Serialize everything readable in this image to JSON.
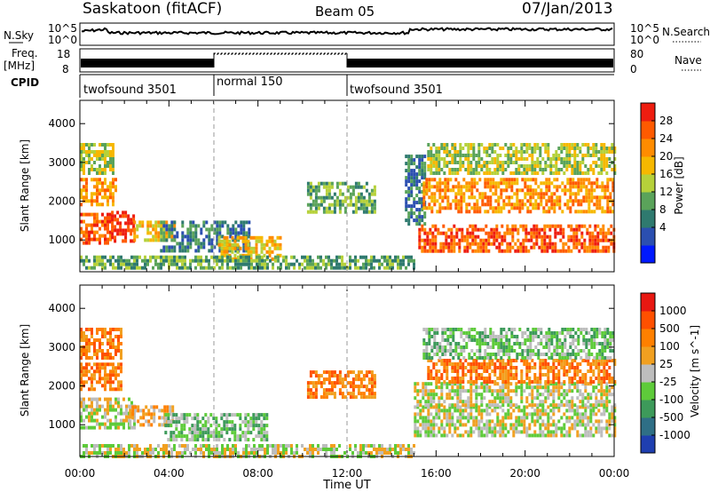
{
  "header": {
    "station": "Saskatoon (fitACF)",
    "beam": "Beam 05",
    "date": "07/Jan/2013"
  },
  "noise_panel": {
    "left_label": "N.Sky",
    "left_ticks": [
      "10^5",
      "10^0"
    ],
    "right_label": "N.Search",
    "right_ticks": [
      "10^5",
      "10^0"
    ]
  },
  "freq_panel": {
    "left_label_1": "Freq.",
    "left_label_2": "[MHz]",
    "left_ticks": [
      "18",
      "8"
    ],
    "right_label": "Nave",
    "right_ticks": [
      "80",
      "0"
    ]
  },
  "cpid": {
    "label": "CPID",
    "segments": [
      {
        "name": "twofsound 3501",
        "start_h": 0,
        "end_h": 6
      },
      {
        "name": "normal 150",
        "start_h": 6,
        "end_h": 12
      },
      {
        "name": "twofsound 3501",
        "start_h": 12,
        "end_h": 24
      }
    ]
  },
  "chart_data": [
    {
      "type": "heatmap",
      "panel": "power",
      "xlabel": "",
      "ylabel": "Slant Range [km]",
      "xlim": [
        0,
        24
      ],
      "ylim": [
        180,
        4600
      ],
      "y_ticks": [
        1000,
        2000,
        3000,
        4000
      ],
      "x_ticks": [
        "00:00",
        "04:00",
        "08:00",
        "12:00",
        "16:00",
        "20:00",
        "00:00"
      ],
      "colorbar": {
        "label": "Power [dB]",
        "ticks": [
          "28",
          "24",
          "20",
          "16",
          "12",
          "8",
          "4"
        ],
        "colors": [
          "#0019ff",
          "#2b4fb0",
          "#2f7a6f",
          "#5aa35a",
          "#b6d13a",
          "#f6b800",
          "#ff8c00",
          "#ff5a00",
          "#ee1d10"
        ]
      },
      "regions": [
        {
          "t0": 0.0,
          "t1": 1.4,
          "r0": 900,
          "r1": 1700,
          "level": 7
        },
        {
          "t0": 1.4,
          "t1": 2.4,
          "r0": 950,
          "r1": 1750,
          "level": 8
        },
        {
          "t0": 2.4,
          "t1": 4.2,
          "r0": 1000,
          "r1": 1500,
          "level": 5
        },
        {
          "t0": 0.0,
          "t1": 1.6,
          "r0": 1900,
          "r1": 2600,
          "level": 6
        },
        {
          "t0": 0.0,
          "t1": 1.5,
          "r0": 2700,
          "r1": 3500,
          "level": 4
        },
        {
          "t0": 3.6,
          "t1": 7.6,
          "r0": 700,
          "r1": 1500,
          "level": 2
        },
        {
          "t0": 6.2,
          "t1": 9.0,
          "r0": 500,
          "r1": 1100,
          "level": 5
        },
        {
          "t0": 0.0,
          "t1": 15.0,
          "r0": 300,
          "r1": 600,
          "level": 3
        },
        {
          "t0": 10.2,
          "t1": 13.2,
          "r0": 1700,
          "r1": 2500,
          "level": 3
        },
        {
          "t0": 14.6,
          "t1": 15.5,
          "r0": 1400,
          "r1": 3200,
          "level": 2
        },
        {
          "t0": 15.2,
          "t1": 24.0,
          "r0": 750,
          "r1": 1400,
          "level": 7
        },
        {
          "t0": 15.4,
          "t1": 24.0,
          "r0": 1700,
          "r1": 2600,
          "level": 6
        },
        {
          "t0": 15.6,
          "t1": 24.0,
          "r0": 2700,
          "r1": 3500,
          "level": 4
        }
      ]
    },
    {
      "type": "heatmap",
      "panel": "velocity",
      "xlabel": "Time UT",
      "ylabel": "Slant Range [km]",
      "xlim": [
        0,
        24
      ],
      "ylim": [
        180,
        4600
      ],
      "y_ticks": [
        1000,
        2000,
        3000,
        4000
      ],
      "x_ticks": [
        "00:00",
        "04:00",
        "08:00",
        "12:00",
        "16:00",
        "20:00",
        "00:00"
      ],
      "colorbar": {
        "label": "Velocity [m s^-1]",
        "ticks": [
          "1000",
          "500",
          "100",
          "25",
          "-25",
          "-100",
          "-500",
          "-1000"
        ],
        "colors": [
          "#1f3fb0",
          "#2f6f86",
          "#3d9a5a",
          "#5ecb3a",
          "#bdbdbd",
          "#f1a020",
          "#ff8000",
          "#ff5000",
          "#e81812"
        ]
      },
      "regions": [
        {
          "t0": 0.0,
          "t1": 2.4,
          "r0": 900,
          "r1": 1700,
          "level": 4
        },
        {
          "t0": 0.0,
          "t1": 1.8,
          "r0": 1900,
          "r1": 2600,
          "level": 6
        },
        {
          "t0": 0.0,
          "t1": 1.8,
          "r0": 2700,
          "r1": 3500,
          "level": 6
        },
        {
          "t0": 2.2,
          "t1": 4.2,
          "r0": 1000,
          "r1": 1500,
          "level": 5
        },
        {
          "t0": 3.8,
          "t1": 8.4,
          "r0": 600,
          "r1": 1300,
          "level": 3
        },
        {
          "t0": 0.0,
          "t1": 15.0,
          "r0": 200,
          "r1": 500,
          "level": 4
        },
        {
          "t0": 10.2,
          "t1": 13.2,
          "r0": 1700,
          "r1": 2400,
          "level": 6
        },
        {
          "t0": 15.0,
          "t1": 24.0,
          "r0": 750,
          "r1": 1500,
          "level": 4
        },
        {
          "t0": 15.0,
          "t1": 24.0,
          "r0": 1500,
          "r1": 2100,
          "level": 4
        },
        {
          "t0": 15.6,
          "t1": 24.0,
          "r0": 2100,
          "r1": 2700,
          "level": 6
        },
        {
          "t0": 15.4,
          "t1": 24.0,
          "r0": 2700,
          "r1": 3500,
          "level": 3
        }
      ]
    }
  ]
}
